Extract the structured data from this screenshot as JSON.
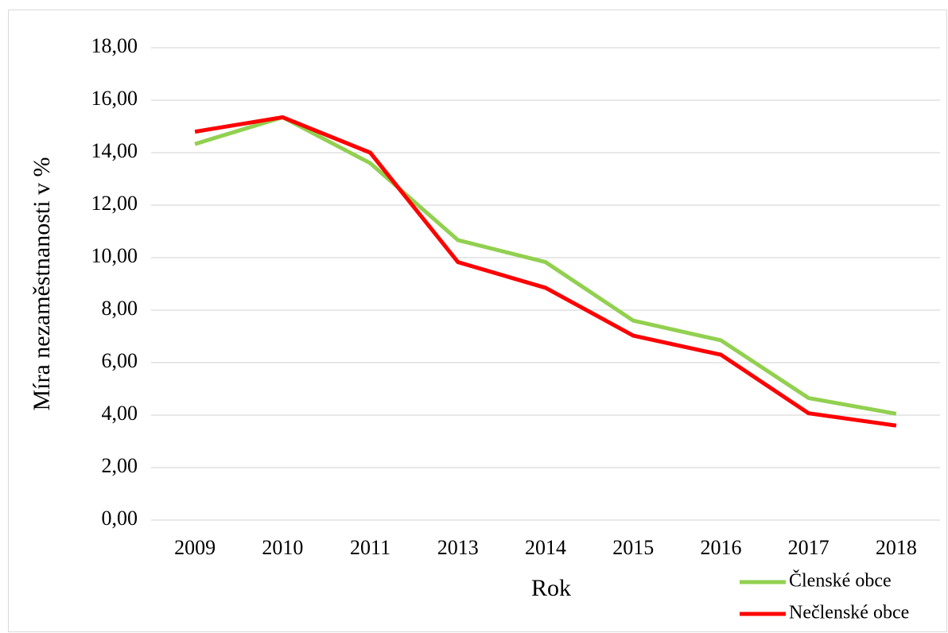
{
  "chart_data": {
    "type": "line",
    "x_label": "Rok",
    "y_label": "Míra nezaměstnanosti v %",
    "categories": [
      "2009",
      "2010",
      "2011",
      "2013",
      "2014",
      "2015",
      "2016",
      "2017",
      "2018"
    ],
    "series": [
      {
        "name": "Členské obce",
        "color": "#92d050",
        "values": [
          14.33,
          15.35,
          13.6,
          10.67,
          9.83,
          7.6,
          6.85,
          4.65,
          4.05
        ]
      },
      {
        "name": "Nečlenské obce",
        "color": "#ff0000",
        "values": [
          14.8,
          15.35,
          14.0,
          9.83,
          8.85,
          7.03,
          6.3,
          4.07,
          3.6
        ]
      }
    ],
    "ylim": [
      0,
      18
    ],
    "yticks": [
      {
        "value": 0,
        "label": "0,00"
      },
      {
        "value": 2,
        "label": "2,00"
      },
      {
        "value": 4,
        "label": "4,00"
      },
      {
        "value": 6,
        "label": "6,00"
      },
      {
        "value": 8,
        "label": "8,00"
      },
      {
        "value": 10,
        "label": "10,00"
      },
      {
        "value": 12,
        "label": "12,00"
      },
      {
        "value": 14,
        "label": "14,00"
      },
      {
        "value": 16,
        "label": "16,00"
      },
      {
        "value": 18,
        "label": "18,00"
      }
    ],
    "grid": true,
    "legend": "lower right"
  }
}
